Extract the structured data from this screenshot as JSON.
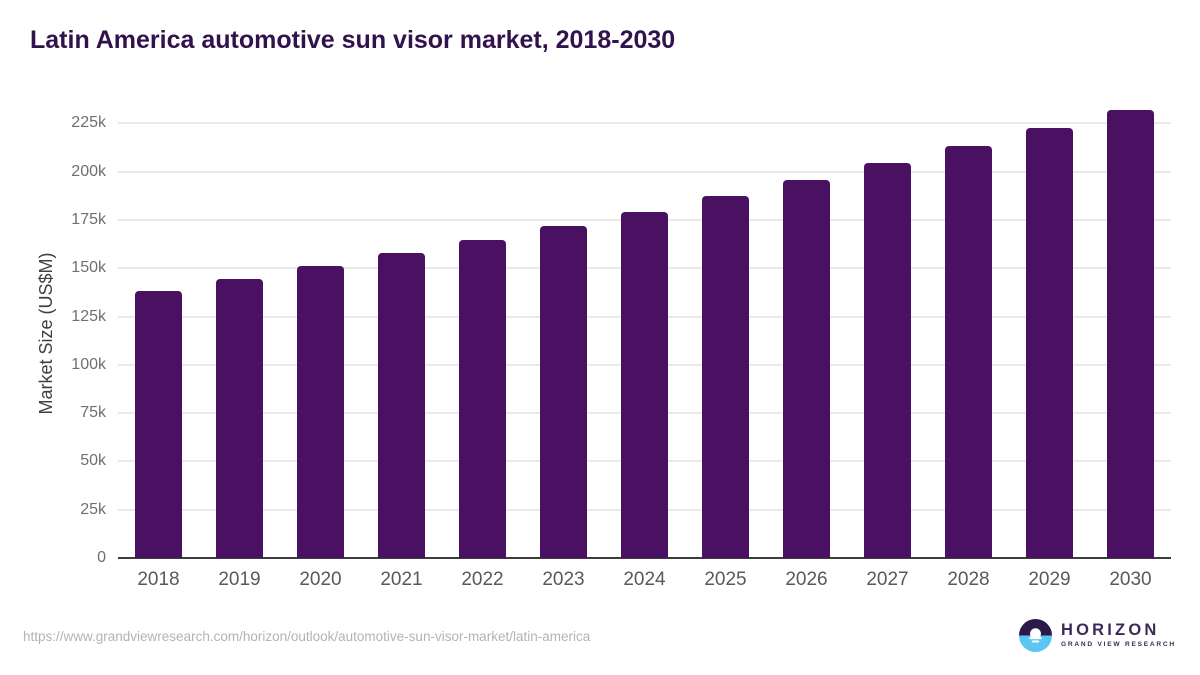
{
  "page": {
    "footer": {
      "source_url": "https://www.grandviewresearch.com/horizon/outlook/automotive-sun-visor-market/latin-america"
    },
    "logo": {
      "name": "HORIZON",
      "tagline": "GRAND VIEW RESEARCH"
    }
  },
  "chart_data": {
    "type": "bar",
    "title": "Latin America automotive sun visor market, 2018-2030",
    "xlabel": "",
    "ylabel": "Market Size (US$M)",
    "categories": [
      "2018",
      "2019",
      "2020",
      "2021",
      "2022",
      "2023",
      "2024",
      "2025",
      "2026",
      "2027",
      "2028",
      "2029",
      "2030"
    ],
    "values": [
      138000,
      144600,
      151000,
      157900,
      164400,
      171600,
      179300,
      187200,
      195400,
      204200,
      213200,
      222400,
      232100
    ],
    "ylim": [
      0,
      240000
    ],
    "ytick_step": 25000,
    "ytick_labels": [
      "0",
      "25k",
      "50k",
      "75k",
      "100k",
      "125k",
      "150k",
      "175k",
      "200k",
      "225k"
    ],
    "grid": true,
    "legend": false,
    "bar_color": "#4a1162",
    "colors": {
      "title": "#31124d",
      "bar": "#4a1162",
      "axis_line": "#3c3c3c",
      "gridline": "#e9e9e9",
      "y_tick_label": "#6f6f6f",
      "x_tick_label": "#595959",
      "y_axis_label": "#404040",
      "footer_url": "#b3b3b3",
      "logo_purple": "#3b2a55",
      "logo_dark_half": "#2b1a47",
      "logo_blue_half": "#5bc6f2",
      "background": "#ffffff"
    }
  }
}
